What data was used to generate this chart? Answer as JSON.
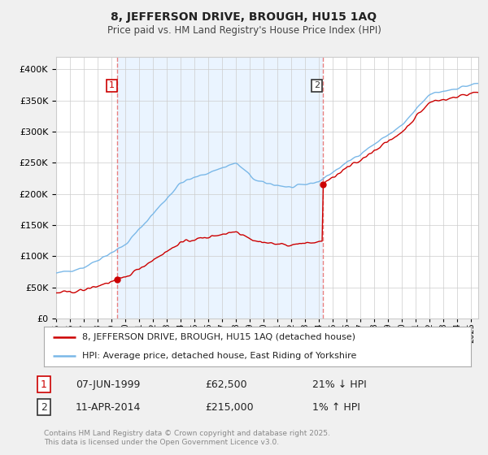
{
  "title": "8, JEFFERSON DRIVE, BROUGH, HU15 1AQ",
  "subtitle": "Price paid vs. HM Land Registry's House Price Index (HPI)",
  "legend_line1": "8, JEFFERSON DRIVE, BROUGH, HU15 1AQ (detached house)",
  "legend_line2": "HPI: Average price, detached house, East Riding of Yorkshire",
  "footnote": "Contains HM Land Registry data © Crown copyright and database right 2025.\nThis data is licensed under the Open Government Licence v3.0.",
  "purchase1_date": "07-JUN-1999",
  "purchase1_price": 62500,
  "purchase1_label": "1",
  "purchase1_note": "21% ↓ HPI",
  "purchase2_date": "11-APR-2014",
  "purchase2_price": 215000,
  "purchase2_label": "2",
  "purchase2_note": "1% ↑ HPI",
  "hpi_color": "#7ab8e8",
  "price_color": "#cc0000",
  "vline_color": "#e88080",
  "dot_color": "#cc0000",
  "shade_color": "#ddeeff",
  "ylim_min": 0,
  "ylim_max": 420000,
  "yticks": [
    0,
    50000,
    100000,
    150000,
    200000,
    250000,
    300000,
    350000,
    400000
  ],
  "bg_color": "#f0f0f0",
  "plot_bg": "#ffffff",
  "grid_color": "#cccccc",
  "label1_color": "#cc0000",
  "label2_color": "#333333"
}
